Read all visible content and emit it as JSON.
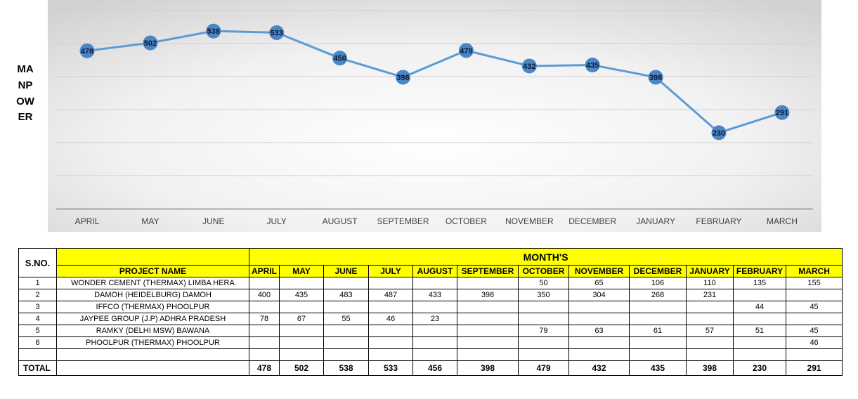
{
  "chart_data": {
    "type": "line",
    "ylabel": "MANPOWER",
    "categories": [
      "APRIL",
      "MAY",
      "JUNE",
      "JULY",
      "AUGUST",
      "SEPTEMBER",
      "OCTOBER",
      "NOVEMBER",
      "DECEMBER",
      "JANUARY",
      "FEBRUARY",
      "MARCH"
    ],
    "series": [
      {
        "values": [
          478,
          502,
          538,
          533,
          456,
          398,
          479,
          432,
          435,
          398,
          230,
          291
        ]
      }
    ],
    "ylim": [
      0,
      600
    ],
    "grid": true,
    "line_color": "#5b9bd5",
    "marker_color": "#4a86c5",
    "label_color": "#0d1a33"
  },
  "table": {
    "sno_header": "S.NO.",
    "months_title": "MONTH'S",
    "project_header": "PROJECT NAME",
    "months": [
      "APRIL",
      "MAY",
      "JUNE",
      "JULY",
      "AUGUST",
      "SEPTEMBER",
      "OCTOBER",
      "NOVEMBER",
      "DECEMBER",
      "JANUARY",
      "FEBRUARY",
      "MARCH"
    ],
    "rows": [
      {
        "sno": "1",
        "project": "WONDER CEMENT (THERMAX) LIMBA HERA",
        "values": [
          "",
          "",
          "",
          "",
          "",
          "",
          "50",
          "65",
          "106",
          "110",
          "135",
          "155"
        ]
      },
      {
        "sno": "2",
        "project": "DAMOH (HEIDELBURG) DAMOH",
        "values": [
          "400",
          "435",
          "483",
          "487",
          "433",
          "398",
          "350",
          "304",
          "268",
          "231",
          "",
          ""
        ]
      },
      {
        "sno": "3",
        "project": "IFFCO (THERMAX) PHOOLPUR",
        "values": [
          "",
          "",
          "",
          "",
          "",
          "",
          "",
          "",
          "",
          "",
          "44",
          "45"
        ]
      },
      {
        "sno": "4",
        "project": "JAYPEE GROUP (J.P) ADHRA PRADESH",
        "values": [
          "78",
          "67",
          "55",
          "46",
          "23",
          "",
          "",
          "",
          "",
          "",
          "",
          ""
        ]
      },
      {
        "sno": "5",
        "project": "RAMKY (DELHI MSW) BAWANA",
        "values": [
          "",
          "",
          "",
          "",
          "",
          "",
          "79",
          "63",
          "61",
          "57",
          "51",
          "45"
        ]
      },
      {
        "sno": "6",
        "project": "PHOOLPUR (THERMAX) PHOOLPUR",
        "values": [
          "",
          "",
          "",
          "",
          "",
          "",
          "",
          "",
          "",
          "",
          "",
          "46"
        ]
      }
    ],
    "total_label": "TOTAL",
    "totals": [
      "478",
      "502",
      "538",
      "533",
      "456",
      "398",
      "479",
      "432",
      "435",
      "398",
      "230",
      "291"
    ]
  }
}
